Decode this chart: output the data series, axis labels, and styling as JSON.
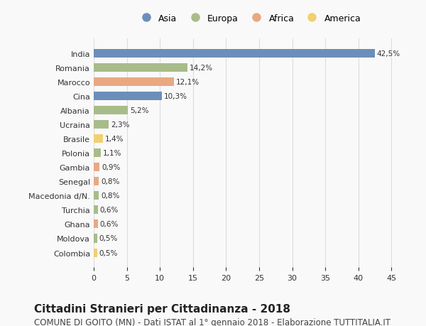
{
  "countries": [
    "India",
    "Romania",
    "Marocco",
    "Cina",
    "Albania",
    "Ucraina",
    "Brasile",
    "Polonia",
    "Gambia",
    "Senegal",
    "Macedonia d/N.",
    "Turchia",
    "Ghana",
    "Moldova",
    "Colombia"
  ],
  "values": [
    42.5,
    14.2,
    12.1,
    10.3,
    5.2,
    2.3,
    1.4,
    1.1,
    0.9,
    0.8,
    0.8,
    0.6,
    0.6,
    0.5,
    0.5
  ],
  "labels": [
    "42,5%",
    "14,2%",
    "12,1%",
    "10,3%",
    "5,2%",
    "2,3%",
    "1,4%",
    "1,1%",
    "0,9%",
    "0,8%",
    "0,8%",
    "0,6%",
    "0,6%",
    "0,5%",
    "0,5%"
  ],
  "continents": [
    "Asia",
    "Europa",
    "Africa",
    "Asia",
    "Europa",
    "Europa",
    "America",
    "Europa",
    "Africa",
    "Africa",
    "Europa",
    "Europa",
    "Africa",
    "Europa",
    "America"
  ],
  "continent_colors": {
    "Asia": "#6b8eba",
    "Europa": "#a8bc8a",
    "Africa": "#e8a882",
    "America": "#f0d070"
  },
  "legend_order": [
    "Asia",
    "Europa",
    "Africa",
    "America"
  ],
  "title": "Cittadini Stranieri per Cittadinanza - 2018",
  "subtitle": "COMUNE DI GOITO (MN) - Dati ISTAT al 1° gennaio 2018 - Elaborazione TUTTITALIA.IT",
  "xlim": [
    0,
    47
  ],
  "xticks": [
    0,
    5,
    10,
    15,
    20,
    25,
    30,
    35,
    40,
    45
  ],
  "background_color": "#f9f9f9",
  "grid_color": "#dddddd",
  "title_fontsize": 11,
  "subtitle_fontsize": 8.5,
  "bar_height": 0.6
}
